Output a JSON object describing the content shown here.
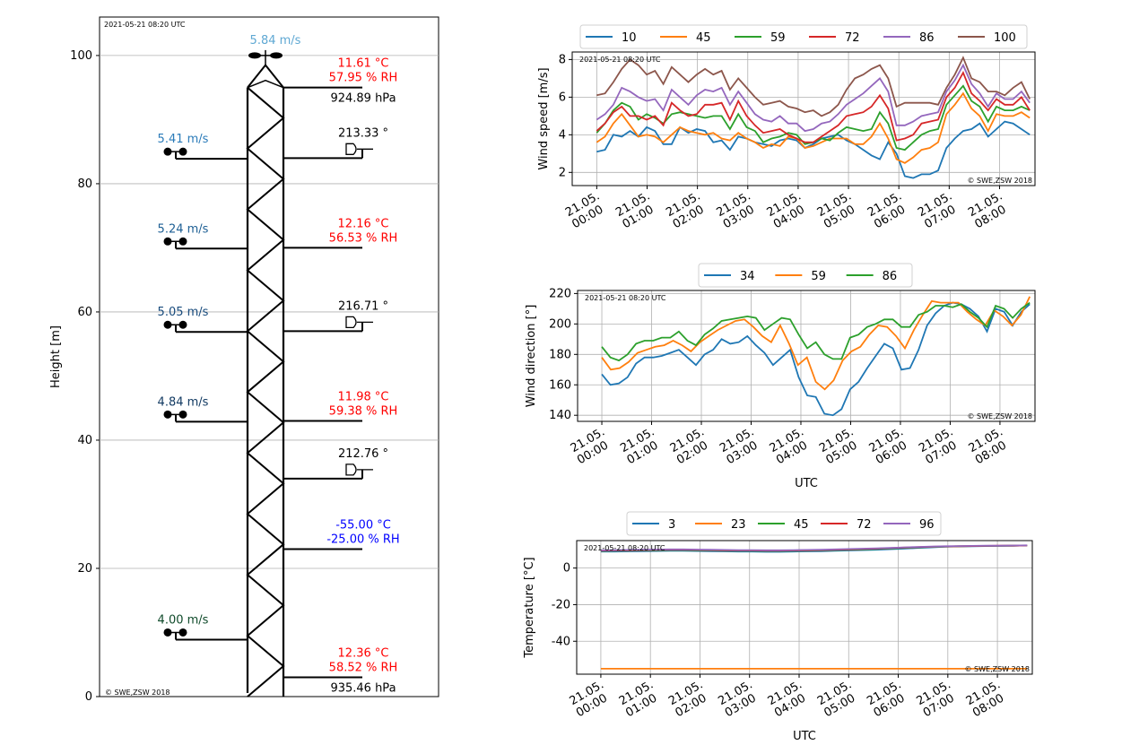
{
  "timestamp": "2021-05-21 08:20 UTC",
  "copyright": "© SWE,ZSW 2018",
  "colors": {
    "tab_blue": "#1f77b4",
    "tab_orange": "#ff7f0e",
    "tab_green": "#2ca02c",
    "tab_red": "#d62728",
    "tab_purple": "#9467bd",
    "tab_brown": "#8c564b",
    "grid": "#b0b0b0",
    "temp_text": "#ff0000",
    "invalid_text": "#0000ff"
  },
  "time_ticks": [
    "21.05.\n00:00",
    "21.05.\n01:00",
    "21.05.\n02:00",
    "21.05.\n03:00",
    "21.05.\n04:00",
    "21.05.\n05:00",
    "21.05.\n06:00",
    "21.05.\n07:00",
    "21.05.\n08:00"
  ],
  "tower": {
    "ylabel": "Height [m]",
    "ylim": [
      0,
      106
    ],
    "yticks": [
      0,
      20,
      40,
      60,
      80,
      100
    ],
    "wind_speeds": [
      {
        "height": 100,
        "label": "5.84 m/s",
        "color": "#5fa8d3",
        "top": true
      },
      {
        "height": 85,
        "label": "5.41 m/s",
        "color": "#2b7bb9"
      },
      {
        "height": 71,
        "label": "5.24 m/s",
        "color": "#1d5f94"
      },
      {
        "height": 58,
        "label": "5.05 m/s",
        "color": "#174a7c"
      },
      {
        "height": 44,
        "label": "4.84 m/s",
        "color": "#123a62"
      },
      {
        "height": 10,
        "label": "4.00 m/s",
        "color": "#0f4a2a"
      }
    ],
    "thermo": [
      {
        "height": 95,
        "temp": "11.61 °C",
        "rh": "57.95 % RH",
        "pressure": "924.89 hPa",
        "color": "#ff0000"
      },
      {
        "height": 70,
        "temp": "12.16 °C",
        "rh": "56.53 % RH",
        "color": "#ff0000"
      },
      {
        "height": 43,
        "temp": "11.98 °C",
        "rh": "59.38 % RH",
        "color": "#ff0000"
      },
      {
        "height": 23,
        "temp": "-55.00 °C",
        "rh": "-25.00 % RH",
        "color": "#0000ff"
      },
      {
        "height": 3,
        "temp": "12.36 °C",
        "rh": "58.52 % RH",
        "pressure": "935.46 hPa",
        "color": "#ff0000"
      }
    ],
    "wind_dirs": [
      {
        "height": 84,
        "label": "213.33 °"
      },
      {
        "height": 57,
        "label": "216.71 °"
      },
      {
        "height": 34,
        "label": "212.76 °"
      }
    ]
  },
  "chart_data": [
    {
      "type": "line",
      "ylabel": "Wind speed [m/s]",
      "ylim": [
        1.3,
        8.4
      ],
      "yticks": [
        2,
        4,
        6,
        8
      ],
      "legend_placement": "top",
      "series": [
        {
          "name": "10",
          "color": "#1f77b4",
          "values": [
            3.1,
            3.2,
            4.0,
            3.9,
            4.2,
            3.9,
            4.4,
            4.2,
            3.5,
            3.5,
            4.4,
            4.1,
            4.3,
            4.2,
            3.6,
            3.7,
            3.2,
            3.9,
            3.8,
            3.6,
            3.5,
            3.4,
            3.7,
            3.8,
            3.7,
            3.3,
            3.5,
            3.8,
            3.9,
            4.0,
            3.7,
            3.5,
            3.2,
            2.9,
            2.7,
            3.6,
            3.0,
            1.8,
            1.7,
            1.9,
            1.9,
            2.1,
            3.3,
            3.8,
            4.2,
            4.3,
            4.6,
            3.9,
            4.3,
            4.7,
            4.6,
            4.3,
            4.0
          ]
        },
        {
          "name": "45",
          "color": "#ff7f0e",
          "values": [
            3.6,
            3.9,
            4.6,
            5.1,
            4.5,
            3.9,
            4.0,
            3.9,
            3.6,
            4.0,
            4.4,
            4.2,
            4.1,
            4.0,
            4.1,
            3.8,
            3.7,
            4.1,
            3.8,
            3.6,
            3.3,
            3.5,
            3.4,
            3.9,
            3.8,
            3.3,
            3.4,
            3.6,
            3.8,
            3.8,
            3.8,
            3.5,
            3.5,
            3.9,
            4.6,
            3.8,
            2.7,
            2.5,
            2.8,
            3.2,
            3.3,
            3.6,
            5.1,
            5.6,
            6.2,
            5.4,
            5.0,
            4.2,
            5.1,
            5.0,
            5.0,
            5.2,
            4.9
          ]
        },
        {
          "name": "59",
          "color": "#2ca02c",
          "values": [
            4.1,
            4.6,
            5.3,
            5.7,
            5.5,
            4.8,
            5.1,
            4.9,
            4.6,
            5.1,
            5.2,
            5.1,
            5.0,
            4.9,
            5.0,
            5.0,
            4.3,
            5.1,
            4.4,
            4.2,
            3.6,
            3.8,
            3.9,
            4.1,
            4.0,
            3.5,
            3.6,
            3.8,
            3.7,
            4.1,
            4.4,
            4.3,
            4.2,
            4.3,
            5.2,
            4.6,
            3.3,
            3.2,
            3.6,
            4.0,
            4.2,
            4.3,
            5.6,
            6.1,
            6.6,
            5.8,
            5.5,
            4.7,
            5.5,
            5.3,
            5.3,
            5.5,
            5.3
          ]
        },
        {
          "name": "72",
          "color": "#d62728",
          "values": [
            4.2,
            4.6,
            5.2,
            5.5,
            5.0,
            5.0,
            4.8,
            5.0,
            4.5,
            5.7,
            5.3,
            5.0,
            5.1,
            5.6,
            5.6,
            5.7,
            4.8,
            5.8,
            5.0,
            4.5,
            4.1,
            4.2,
            4.3,
            4.0,
            3.8,
            3.6,
            3.6,
            3.9,
            4.2,
            4.5,
            5.0,
            5.1,
            5.2,
            5.5,
            6.1,
            5.4,
            3.7,
            3.8,
            4.0,
            4.6,
            4.7,
            4.8,
            6.0,
            6.5,
            7.3,
            6.2,
            5.8,
            5.3,
            5.9,
            5.6,
            5.6,
            6.0,
            5.3
          ]
        },
        {
          "name": "86",
          "color": "#9467bd",
          "values": [
            4.8,
            5.1,
            5.6,
            6.5,
            6.3,
            6.0,
            5.8,
            5.9,
            5.3,
            6.4,
            6.0,
            5.6,
            6.1,
            6.4,
            6.3,
            6.5,
            5.6,
            6.3,
            5.7,
            5.1,
            4.8,
            4.7,
            5.0,
            4.6,
            4.6,
            4.2,
            4.3,
            4.6,
            4.7,
            5.1,
            5.6,
            5.9,
            6.2,
            6.6,
            7.0,
            6.3,
            4.5,
            4.5,
            4.7,
            5.0,
            5.1,
            5.2,
            6.3,
            6.9,
            7.7,
            6.7,
            6.2,
            5.5,
            6.2,
            5.9,
            5.9,
            6.3,
            5.7
          ]
        },
        {
          "name": "100",
          "color": "#8c564b",
          "values": [
            6.1,
            6.2,
            6.8,
            7.5,
            8.0,
            7.7,
            7.2,
            7.4,
            6.7,
            7.6,
            7.2,
            6.8,
            7.2,
            7.5,
            7.2,
            7.4,
            6.4,
            7.0,
            6.5,
            6.0,
            5.6,
            5.7,
            5.8,
            5.5,
            5.4,
            5.2,
            5.3,
            5.0,
            5.2,
            5.6,
            6.4,
            7.0,
            7.2,
            7.5,
            7.7,
            7.0,
            5.5,
            5.7,
            5.7,
            5.7,
            5.7,
            5.6,
            6.5,
            7.2,
            8.1,
            7.0,
            6.8,
            6.3,
            6.3,
            6.1,
            6.5,
            6.8,
            5.9
          ]
        }
      ]
    },
    {
      "type": "line",
      "ylabel": "Wind direction [°]",
      "xlabel": "UTC",
      "ylim": [
        136,
        222
      ],
      "yticks": [
        140,
        160,
        180,
        200,
        220
      ],
      "legend_placement": "top",
      "series": [
        {
          "name": "34",
          "color": "#1f77b4",
          "values": [
            167,
            160,
            161,
            165,
            174,
            178,
            178,
            179,
            181,
            183,
            178,
            173,
            180,
            183,
            190,
            187,
            188,
            192,
            186,
            181,
            173,
            178,
            183,
            165,
            153,
            152,
            141,
            140,
            144,
            157,
            162,
            171,
            179,
            187,
            184,
            170,
            171,
            183,
            199,
            207,
            212,
            214,
            213,
            210,
            205,
            195,
            210,
            208,
            199,
            208,
            213
          ]
        },
        {
          "name": "59",
          "color": "#ff7f0e",
          "values": [
            178,
            170,
            171,
            175,
            181,
            183,
            185,
            186,
            189,
            186,
            182,
            188,
            192,
            196,
            199,
            202,
            203,
            198,
            192,
            188,
            199,
            187,
            173,
            178,
            162,
            157,
            163,
            176,
            182,
            185,
            193,
            199,
            198,
            192,
            184,
            196,
            206,
            215,
            214,
            214,
            214,
            208,
            203,
            199,
            209,
            205,
            199,
            206,
            218
          ]
        },
        {
          "name": "86",
          "color": "#2ca02c",
          "values": [
            185,
            178,
            176,
            180,
            187,
            189,
            189,
            191,
            191,
            195,
            189,
            186,
            193,
            197,
            202,
            203,
            204,
            205,
            204,
            196,
            200,
            204,
            203,
            193,
            184,
            188,
            180,
            177,
            177,
            191,
            193,
            198,
            200,
            203,
            203,
            198,
            198,
            206,
            208,
            212,
            212,
            211,
            213,
            208,
            204,
            198,
            212,
            210,
            204,
            210,
            214
          ]
        }
      ]
    },
    {
      "type": "line",
      "ylabel": "Temperature [°C]",
      "xlabel": "UTC",
      "ylim": [
        -58,
        15
      ],
      "yticks": [
        0,
        -20,
        -40
      ],
      "legend_placement": "top",
      "series": [
        {
          "name": "3",
          "color": "#1f77b4",
          "values": [
            9.0,
            9.0,
            9.1,
            9.2,
            9.3,
            9.4,
            9.4,
            9.3,
            9.2,
            9.1,
            9.0,
            9.0,
            8.9,
            8.9,
            9.0,
            9.1,
            9.2,
            9.4,
            9.6,
            9.8,
            10.0,
            10.3,
            10.6,
            11.0,
            11.3,
            11.6,
            11.8,
            11.9,
            12.0,
            12.1,
            12.2,
            12.3
          ]
        },
        {
          "name": "23",
          "color": "#ff7f0e",
          "values": [
            -55,
            -55,
            -55,
            -55,
            -55,
            -55,
            -55,
            -55,
            -55,
            -55,
            -55,
            -55,
            -55,
            -55,
            -55,
            -55,
            -55,
            -55,
            -55,
            -55,
            -55,
            -55,
            -55,
            -55,
            -55,
            -55,
            -55,
            -55,
            -55,
            -55,
            -55,
            -55
          ]
        },
        {
          "name": "45",
          "color": "#2ca02c",
          "values": [
            9.3,
            9.4,
            9.5,
            9.6,
            9.7,
            9.8,
            9.8,
            9.7,
            9.6,
            9.5,
            9.4,
            9.4,
            9.3,
            9.3,
            9.4,
            9.5,
            9.6,
            9.8,
            10.0,
            10.2,
            10.4,
            10.7,
            11.0,
            11.3,
            11.5,
            11.7,
            11.9,
            12.0,
            12.1,
            12.1,
            12.2,
            12.3
          ]
        },
        {
          "name": "72",
          "color": "#d62728",
          "values": [
            9.5,
            9.6,
            9.7,
            9.8,
            9.9,
            10.0,
            10.0,
            9.9,
            9.8,
            9.7,
            9.6,
            9.6,
            9.5,
            9.5,
            9.6,
            9.7,
            9.8,
            10.0,
            10.2,
            10.4,
            10.6,
            10.9,
            11.2,
            11.4,
            11.6,
            11.8,
            11.9,
            12.0,
            12.1,
            12.2,
            12.2,
            12.3
          ]
        },
        {
          "name": "96",
          "color": "#9467bd",
          "values": [
            9.7,
            9.8,
            9.9,
            10.0,
            10.1,
            10.2,
            10.2,
            10.1,
            10.0,
            9.9,
            9.8,
            9.8,
            9.7,
            9.7,
            9.8,
            9.9,
            10.0,
            10.2,
            10.4,
            10.6,
            10.8,
            11.0,
            11.3,
            11.5,
            11.7,
            11.9,
            12.0,
            12.1,
            12.2,
            12.2,
            12.3,
            12.4
          ]
        }
      ]
    }
  ]
}
